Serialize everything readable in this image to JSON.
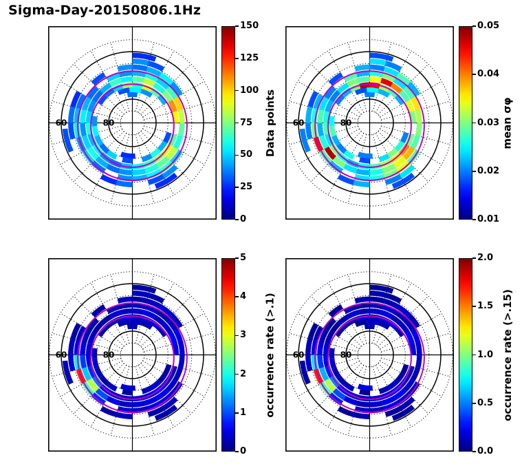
{
  "title": "Sigma-Day-20150806.1Hz",
  "chart_data": {
    "type": "heatmap",
    "projection": "polar",
    "title": "Sigma-Day-20150806.1Hz",
    "colormap": "jet",
    "polar_grid": {
      "lat_center_deg": 90,
      "lat_outer_deg": 55,
      "dotted_lats": [
        85,
        75,
        70,
        65,
        55
      ],
      "solid_lats": [
        80,
        60
      ],
      "spoke_step_deg": 15,
      "axis_labels": [
        {
          "text": "60",
          "lat": 60
        },
        {
          "text": "80",
          "lat": 80
        }
      ],
      "auroral_oval_lats": [
        72.5,
        67
      ],
      "oval_center_offset_deg": 1.2,
      "oval_color": "#bf00bf"
    },
    "arc_fields": [
      "latitude_deg",
      "angle_start_deg",
      "angle_end_deg",
      "data_points",
      "mean_sigma_phi",
      "occurrence_rate_gt_0.1",
      "occurrence_rate_gt_0.15"
    ],
    "arcs": [
      [
        78,
        80,
        100,
        35,
        0.02,
        0.3,
        0.1
      ],
      [
        76,
        55,
        75,
        40,
        0.022,
        0.2,
        0.1
      ],
      [
        76,
        75,
        95,
        55,
        0.025,
        0.3,
        0.15
      ],
      [
        76,
        95,
        115,
        30,
        0.018,
        0.2,
        0.05
      ],
      [
        76,
        250,
        275,
        25,
        0.02,
        0.4,
        0.2
      ],
      [
        74,
        30,
        45,
        45,
        0.022,
        0.3,
        0.1
      ],
      [
        74,
        45,
        60,
        70,
        0.028,
        0.5,
        0.2
      ],
      [
        74,
        60,
        75,
        90,
        0.032,
        0.4,
        0.15
      ],
      [
        74,
        75,
        90,
        60,
        0.045,
        0.3,
        0.1
      ],
      [
        74,
        90,
        105,
        80,
        0.048,
        0.6,
        0.2
      ],
      [
        74,
        105,
        120,
        50,
        0.03,
        0.3,
        0.1
      ],
      [
        74,
        120,
        135,
        35,
        0.022,
        0.2,
        0.1
      ],
      [
        74,
        135,
        150,
        30,
        0.02,
        0.2,
        0.05
      ],
      [
        74,
        170,
        185,
        40,
        0.025,
        0.3,
        0.1
      ],
      [
        74,
        185,
        200,
        55,
        0.028,
        0.4,
        0.15
      ],
      [
        74,
        200,
        215,
        45,
        0.022,
        0.3,
        0.1
      ],
      [
        74,
        215,
        230,
        35,
        0.02,
        0.2,
        0.1
      ],
      [
        74,
        230,
        245,
        50,
        0.026,
        0.3,
        0.1
      ],
      [
        74,
        255,
        270,
        30,
        0.018,
        0.2,
        0.05
      ],
      [
        74,
        285,
        300,
        40,
        0.024,
        0.3,
        0.1
      ],
      [
        74,
        300,
        315,
        60,
        0.03,
        0.4,
        0.15
      ],
      [
        74,
        315,
        330,
        45,
        0.026,
        0.2,
        0.1
      ],
      [
        74,
        330,
        345,
        30,
        0.02,
        0.2,
        0.05
      ],
      [
        71.5,
        0,
        15,
        95,
        0.03,
        0.5,
        0.2
      ],
      [
        71.5,
        15,
        30,
        110,
        0.034,
        0.6,
        0.25
      ],
      [
        71.5,
        30,
        45,
        75,
        0.028,
        0.4,
        0.15
      ],
      [
        71.5,
        45,
        60,
        60,
        0.04,
        0.3,
        0.1
      ],
      [
        71.5,
        60,
        75,
        85,
        0.046,
        0.5,
        0.2
      ],
      [
        71.5,
        75,
        90,
        70,
        0.035,
        0.4,
        0.15
      ],
      [
        71.5,
        90,
        105,
        55,
        0.028,
        0.3,
        0.1
      ],
      [
        71.5,
        105,
        120,
        65,
        0.03,
        0.4,
        0.15
      ],
      [
        71.5,
        120,
        135,
        45,
        0.024,
        0.2,
        0.1
      ],
      [
        71.5,
        135,
        150,
        35,
        0.02,
        0.2,
        0.05
      ],
      [
        71.5,
        150,
        165,
        40,
        0.022,
        0.3,
        0.1
      ],
      [
        71.5,
        165,
        180,
        50,
        0.026,
        0.4,
        0.15
      ],
      [
        71.5,
        180,
        195,
        60,
        0.028,
        0.5,
        0.2
      ],
      [
        71.5,
        195,
        210,
        45,
        0.024,
        0.8,
        0.3
      ],
      [
        71.5,
        210,
        225,
        55,
        0.03,
        1.2,
        0.5
      ],
      [
        71.5,
        225,
        240,
        40,
        0.026,
        0.6,
        0.25
      ],
      [
        71.5,
        240,
        255,
        35,
        0.022,
        0.4,
        0.15
      ],
      [
        71.5,
        255,
        270,
        45,
        0.025,
        0.3,
        0.1
      ],
      [
        71.5,
        270,
        285,
        55,
        0.028,
        0.4,
        0.15
      ],
      [
        71.5,
        285,
        300,
        65,
        0.032,
        0.5,
        0.2
      ],
      [
        71.5,
        300,
        315,
        80,
        0.036,
        0.6,
        0.25
      ],
      [
        71.5,
        315,
        330,
        95,
        0.04,
        0.4,
        0.15
      ],
      [
        71.5,
        330,
        345,
        70,
        0.03,
        0.3,
        0.1
      ],
      [
        69,
        0,
        15,
        85,
        0.032,
        0.4,
        0.15
      ],
      [
        69,
        15,
        30,
        100,
        0.036,
        0.5,
        0.2
      ],
      [
        69,
        30,
        45,
        65,
        0.028,
        0.3,
        0.1
      ],
      [
        69,
        45,
        60,
        50,
        0.024,
        0.2,
        0.1
      ],
      [
        69,
        60,
        75,
        60,
        0.03,
        0.4,
        0.15
      ],
      [
        69,
        75,
        90,
        45,
        0.026,
        0.3,
        0.1
      ],
      [
        69,
        90,
        105,
        40,
        0.022,
        0.2,
        0.05
      ],
      [
        69,
        105,
        120,
        50,
        0.028,
        0.3,
        0.1
      ],
      [
        69,
        135,
        150,
        35,
        0.02,
        0.2,
        0.05
      ],
      [
        69,
        150,
        165,
        45,
        0.024,
        0.3,
        0.1
      ],
      [
        69,
        165,
        180,
        55,
        0.028,
        0.5,
        0.2
      ],
      [
        69,
        180,
        195,
        40,
        0.022,
        0.9,
        0.35
      ],
      [
        69,
        195,
        210,
        50,
        0.026,
        1.6,
        0.6
      ],
      [
        69,
        210,
        225,
        60,
        0.048,
        2.8,
        1.1
      ],
      [
        69,
        225,
        240,
        45,
        0.03,
        1.0,
        0.4
      ],
      [
        69,
        240,
        255,
        35,
        0.024,
        0.5,
        0.2
      ],
      [
        69,
        255,
        270,
        40,
        0.022,
        0.3,
        0.1
      ],
      [
        69,
        270,
        285,
        50,
        0.026,
        0.4,
        0.15
      ],
      [
        69,
        285,
        300,
        60,
        0.03,
        0.5,
        0.2
      ],
      [
        69,
        300,
        315,
        70,
        0.034,
        0.6,
        0.25
      ],
      [
        69,
        315,
        330,
        85,
        0.038,
        0.4,
        0.15
      ],
      [
        69,
        330,
        345,
        60,
        0.028,
        0.3,
        0.1
      ],
      [
        69,
        345,
        360,
        70,
        0.03,
        0.4,
        0.15
      ],
      [
        66.5,
        30,
        45,
        40,
        0.022,
        0.3,
        0.1
      ],
      [
        66.5,
        45,
        60,
        55,
        0.028,
        0.4,
        0.15
      ],
      [
        66.5,
        60,
        75,
        45,
        0.024,
        0.3,
        0.1
      ],
      [
        66.5,
        75,
        90,
        35,
        0.02,
        0.2,
        0.05
      ],
      [
        66.5,
        90,
        105,
        40,
        0.022,
        0.3,
        0.1
      ],
      [
        66.5,
        120,
        135,
        30,
        0.018,
        0.2,
        0.05
      ],
      [
        66.5,
        150,
        165,
        35,
        0.022,
        0.3,
        0.1
      ],
      [
        66.5,
        165,
        180,
        45,
        0.026,
        0.5,
        0.2
      ],
      [
        66.5,
        180,
        195,
        55,
        0.03,
        1.8,
        0.7
      ],
      [
        66.5,
        195,
        210,
        40,
        0.045,
        4.2,
        1.7
      ],
      [
        66.5,
        210,
        225,
        50,
        0.028,
        2.2,
        0.9
      ],
      [
        66.5,
        225,
        240,
        35,
        0.022,
        0.8,
        0.3
      ],
      [
        66.5,
        255,
        270,
        40,
        0.024,
        0.4,
        0.15
      ],
      [
        66.5,
        270,
        285,
        45,
        0.026,
        0.3,
        0.1
      ],
      [
        66.5,
        285,
        300,
        55,
        0.03,
        0.5,
        0.2
      ],
      [
        66.5,
        300,
        315,
        65,
        0.034,
        0.4,
        0.15
      ],
      [
        66.5,
        315,
        330,
        50,
        0.028,
        0.3,
        0.1
      ],
      [
        64,
        60,
        75,
        30,
        0.02,
        0.2,
        0.05
      ],
      [
        64,
        75,
        90,
        40,
        0.024,
        0.3,
        0.1
      ],
      [
        64,
        150,
        165,
        25,
        0.018,
        0.2,
        0.05
      ],
      [
        64,
        165,
        180,
        35,
        0.022,
        0.3,
        0.1
      ],
      [
        64,
        180,
        195,
        30,
        0.02,
        0.4,
        0.15
      ],
      [
        64,
        240,
        255,
        25,
        0.018,
        0.2,
        0.05
      ],
      [
        64,
        255,
        270,
        35,
        0.022,
        0.3,
        0.1
      ],
      [
        64,
        285,
        300,
        30,
        0.02,
        0.2,
        0.05
      ],
      [
        64,
        300,
        315,
        40,
        0.024,
        0.3,
        0.1
      ],
      [
        61.5,
        70,
        90,
        25,
        0.018,
        0.2,
        0.05
      ],
      [
        61.5,
        185,
        205,
        30,
        0.02,
        0.3,
        0.1
      ],
      [
        61.5,
        290,
        310,
        25,
        0.018,
        0.2,
        0.05
      ]
    ],
    "subplots": [
      {
        "name": "data-points",
        "colorbar_label": "Data points",
        "vmin": 0,
        "vmax": 150,
        "ticks": [
          "0",
          "25",
          "50",
          "75",
          "100",
          "125",
          "150"
        ],
        "value_index": 3
      },
      {
        "name": "mean-sigma-phi",
        "colorbar_label": "mean σφ",
        "vmin": 0.01,
        "vmax": 0.05,
        "ticks": [
          "0.01",
          "0.02",
          "0.03",
          "0.04",
          "0.05"
        ],
        "value_index": 4
      },
      {
        "name": "occurrence-rate-gt-0.1",
        "colorbar_label": "occurrence rate (>.1)",
        "vmin": 0,
        "vmax": 5,
        "ticks": [
          "0",
          "1",
          "2",
          "3",
          "4",
          "5"
        ],
        "value_index": 5
      },
      {
        "name": "occurrence-rate-gt-0.15",
        "colorbar_label": "occurrence rate (>.15)",
        "vmin": 0.0,
        "vmax": 2.0,
        "ticks": [
          "0.0",
          "0.5",
          "1.0",
          "1.5",
          "2.0"
        ],
        "value_index": 6
      }
    ]
  }
}
